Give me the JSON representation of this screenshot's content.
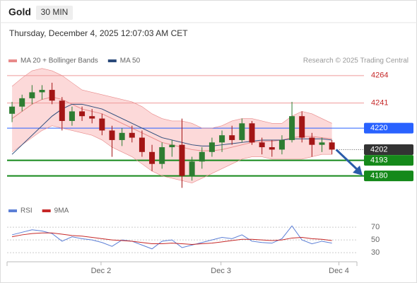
{
  "header": {
    "symbol": "Gold",
    "timeframe": "30 MIN",
    "datetime": "Thursday, December 4, 2025 12:07:03 AM CET",
    "credit": "Research © 2025 Trading Central"
  },
  "chart_data": [
    {
      "type": "candlestick",
      "up_color": "#2e7d32",
      "down_color": "#a31515",
      "ylim": [
        4159,
        4271
      ],
      "xlim": [
        0,
        35
      ],
      "open": [
        4232,
        4238,
        4245,
        4250,
        4252,
        4243,
        4226,
        4234,
        4230,
        4228,
        4218,
        4210,
        4216,
        4212,
        4200,
        4190,
        4204,
        4206,
        4180,
        4192,
        4200,
        4208,
        4214,
        4210,
        4224,
        4208,
        4204,
        4202,
        4210,
        4230,
        4212,
        4206,
        4208
      ],
      "high": [
        4242,
        4248,
        4256,
        4256,
        4258,
        4246,
        4238,
        4238,
        4236,
        4232,
        4222,
        4220,
        4222,
        4218,
        4206,
        4208,
        4210,
        4228,
        4196,
        4204,
        4212,
        4218,
        4222,
        4228,
        4226,
        4212,
        4210,
        4214,
        4242,
        4234,
        4216,
        4212,
        4210
      ],
      "low": [
        4225,
        4234,
        4240,
        4244,
        4240,
        4218,
        4222,
        4226,
        4224,
        4214,
        4196,
        4205,
        4208,
        4196,
        4184,
        4186,
        4196,
        4170,
        4176,
        4186,
        4196,
        4200,
        4206,
        4208,
        4206,
        4198,
        4196,
        4198,
        4208,
        4208,
        4196,
        4200,
        4198
      ],
      "close": [
        4238,
        4245,
        4250,
        4252,
        4243,
        4226,
        4234,
        4230,
        4228,
        4218,
        4210,
        4216,
        4212,
        4200,
        4190,
        4204,
        4206,
        4180,
        4192,
        4200,
        4208,
        4214,
        4210,
        4224,
        4208,
        4204,
        4202,
        4210,
        4230,
        4212,
        4206,
        4208,
        4202
      ],
      "series": [
        {
          "name": "MA 20 + Bollinger Bands",
          "color": "#e88a8a",
          "band_color": "#fbd0d0",
          "values": [
            4228,
            4234,
            4240,
            4244,
            4246,
            4244,
            4240,
            4236,
            4234,
            4232,
            4228,
            4224,
            4220,
            4216,
            4212,
            4208,
            4206,
            4204,
            4202,
            4201,
            4201,
            4202,
            4204,
            4206,
            4208,
            4209,
            4209,
            4210,
            4212,
            4213,
            4213,
            4212,
            4211
          ],
          "upper": [
            4255,
            4262,
            4268,
            4270,
            4268,
            4264,
            4258,
            4252,
            4250,
            4248,
            4246,
            4244,
            4242,
            4238,
            4232,
            4228,
            4226,
            4226,
            4224,
            4220,
            4220,
            4222,
            4226,
            4228,
            4228,
            4226,
            4224,
            4224,
            4230,
            4234,
            4232,
            4228,
            4224
          ],
          "lower": [
            4200,
            4206,
            4212,
            4218,
            4222,
            4220,
            4218,
            4216,
            4214,
            4210,
            4204,
            4200,
            4196,
            4190,
            4184,
            4180,
            4178,
            4176,
            4174,
            4178,
            4182,
            4186,
            4190,
            4194,
            4196,
            4196,
            4194,
            4194,
            4194,
            4194,
            4196,
            4198,
            4198
          ]
        },
        {
          "name": "MA 50",
          "color": "#2b4a7a",
          "values": [
            4198,
            4206,
            4214,
            4222,
            4230,
            4236,
            4240,
            4240,
            4238,
            4236,
            4232,
            4228,
            4224,
            4220,
            4216,
            4212,
            4210,
            4208,
            4206,
            4205,
            4205,
            4206,
            4207,
            4208,
            4209,
            4210,
            4210,
            4210,
            4211,
            4211,
            4211,
            4211,
            4210
          ]
        }
      ],
      "levels": [
        {
          "value": 4264,
          "color": "#ef9a9a",
          "text_color": "#c62828",
          "style": "line"
        },
        {
          "value": 4241,
          "color": "#ef9a9a",
          "text_color": "#c62828",
          "style": "line"
        },
        {
          "value": 4220,
          "color": "#2962ff",
          "text_color": "#ffffff",
          "style": "box"
        },
        {
          "value": 4202,
          "color": "#333333",
          "text_color": "#ffffff",
          "style": "dotted"
        },
        {
          "value": 4193,
          "color": "#15891a",
          "text_color": "#ffffff",
          "style": "box"
        },
        {
          "value": 4180,
          "color": "#15891a",
          "text_color": "#ffffff",
          "style": "box"
        }
      ]
    },
    {
      "type": "line",
      "ylim": [
        18,
        79
      ],
      "yticks": [
        30,
        50,
        70
      ],
      "xlim": [
        0,
        35
      ],
      "xticks": [
        {
          "value": 9.4,
          "label": "Dec 2"
        },
        {
          "value": 21.4,
          "label": "Dec 3"
        },
        {
          "value": 33.2,
          "label": "Dec 4"
        }
      ],
      "series": [
        {
          "name": "RSI",
          "color": "#5c7fd6",
          "values": [
            58,
            62,
            66,
            64,
            60,
            48,
            55,
            52,
            50,
            46,
            40,
            50,
            48,
            42,
            36,
            48,
            50,
            38,
            42,
            46,
            50,
            54,
            52,
            58,
            48,
            46,
            45,
            52,
            72,
            50,
            44,
            48,
            45
          ]
        },
        {
          "name": "9MA",
          "color": "#c62828",
          "values": [
            55,
            58,
            60,
            61,
            61,
            59,
            57,
            56,
            54,
            52,
            50,
            49,
            48,
            46,
            44,
            44,
            45,
            44,
            43,
            44,
            45,
            47,
            49,
            51,
            51,
            50,
            49,
            50,
            53,
            54,
            52,
            51,
            49
          ]
        }
      ]
    }
  ]
}
